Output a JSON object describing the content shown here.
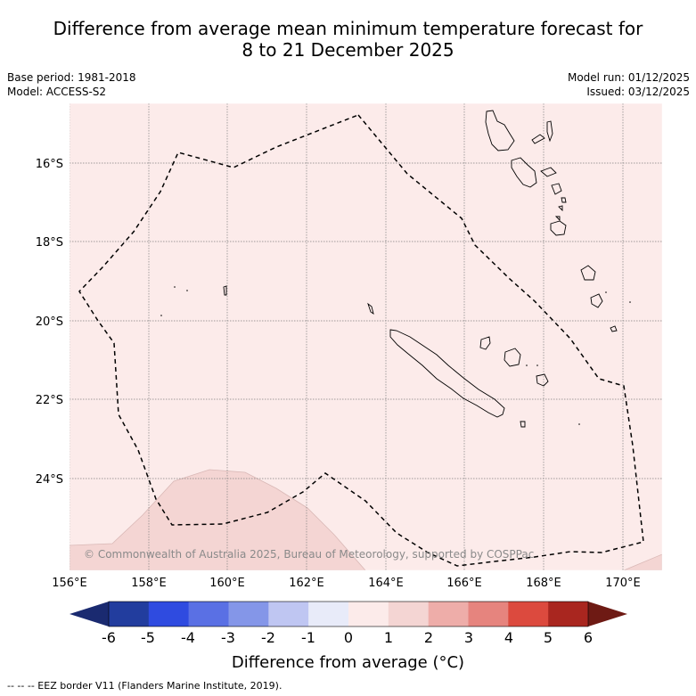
{
  "title": {
    "line1": "Difference from average mean minimum temperature forecast for",
    "line2": "8 to 21 December 2025"
  },
  "meta": {
    "base_period": "Base period: 1981-2018",
    "model": "Model: ACCESS-S2",
    "model_run": "Model run: 01/12/2025",
    "issued": "Issued: 03/12/2025"
  },
  "map": {
    "lat_labels": [
      "16°S",
      "18°S",
      "20°S",
      "22°S",
      "24°S"
    ],
    "lon_labels": [
      "156°E",
      "158°E",
      "160°E",
      "162°E",
      "164°E",
      "166°E",
      "168°E",
      "170°E"
    ],
    "background_color": "#fcebea",
    "anomaly_region_color": "#f4d5d3",
    "copyright": "© Commonwealth of Australia 2025, Bureau of Meteorology, supported by COSPPac"
  },
  "colorbar": {
    "ticks": [
      "-6",
      "-5",
      "-4",
      "-3",
      "-2",
      "-1",
      "0",
      "1",
      "2",
      "3",
      "4",
      "5",
      "6"
    ],
    "colors": [
      "#223d9e",
      "#2f4be0",
      "#5a70e4",
      "#8496e8",
      "#bfc6f2",
      "#e8ebf9",
      "#fcebea",
      "#f4d5d3",
      "#eeada9",
      "#e6847e",
      "#dc4a3e",
      "#a9261f"
    ],
    "low_extend_color": "#1a2a70",
    "high_extend_color": "#6e1a14",
    "title": "Difference from average (°C)"
  },
  "footnote": "--  --  -- EEZ border V11 (Flanders Marine Institute, 2019)."
}
